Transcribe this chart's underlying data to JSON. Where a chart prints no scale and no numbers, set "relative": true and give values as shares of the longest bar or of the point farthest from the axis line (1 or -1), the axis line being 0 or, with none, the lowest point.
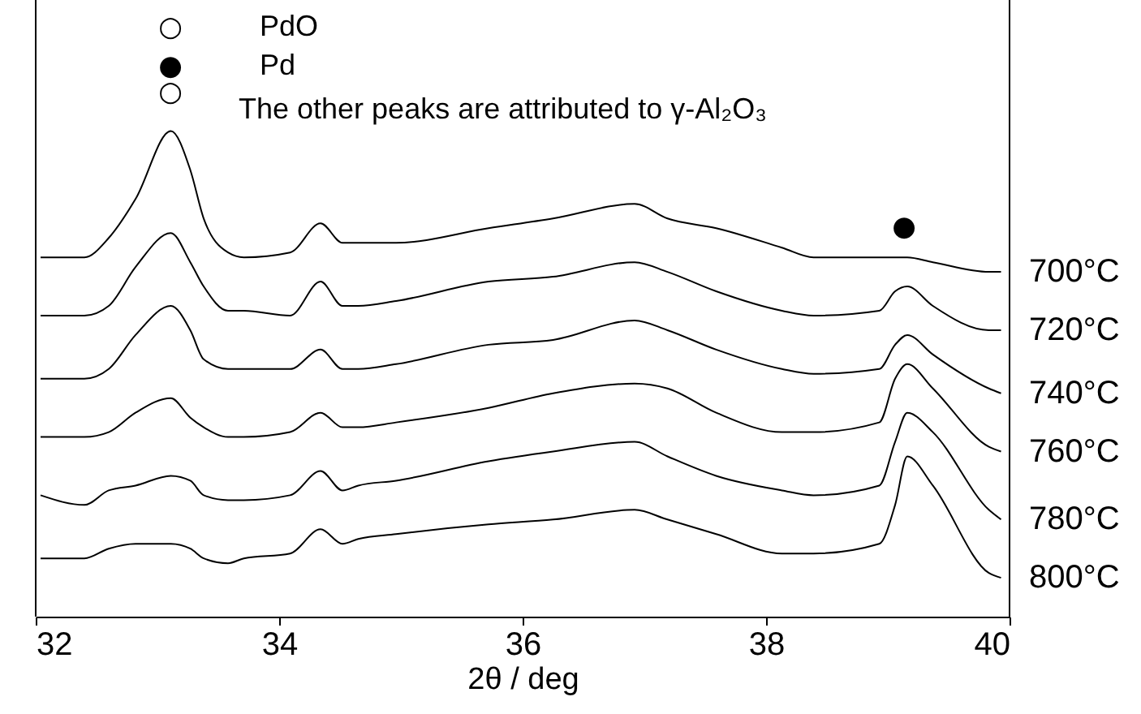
{
  "chart_data": {
    "type": "line",
    "relative": true,
    "xlabel": "2θ / deg",
    "xlim": [
      32,
      40
    ],
    "xticks": [
      32,
      34,
      36,
      38,
      40
    ],
    "grid": false,
    "legend": false,
    "line_style": "solid",
    "marker": "none",
    "x": [
      32.04,
      32.4,
      32.6,
      32.82,
      33.11,
      33.27,
      33.38,
      33.58,
      33.71,
      34.09,
      34.34,
      34.52,
      34.65,
      34.96,
      35.72,
      36.25,
      36.92,
      37.19,
      37.59,
      38.13,
      38.39,
      38.93,
      39.06,
      39.16,
      39.37,
      39.83,
      39.93
    ],
    "series": [
      {
        "name": "700°C",
        "color": "#000000",
        "values": [
          0.74,
          0.74,
          0.78,
          0.86,
          1.0,
          0.92,
          0.82,
          0.75,
          0.74,
          0.75,
          0.81,
          0.77,
          0.77,
          0.77,
          0.8,
          0.82,
          0.85,
          0.82,
          0.8,
          0.76,
          0.74,
          0.74,
          0.74,
          0.74,
          0.73,
          0.71,
          0.71
        ]
      },
      {
        "name": "720°C",
        "color": "#000000",
        "values": [
          0.62,
          0.62,
          0.64,
          0.72,
          0.79,
          0.73,
          0.68,
          0.63,
          0.63,
          0.62,
          0.69,
          0.64,
          0.64,
          0.65,
          0.69,
          0.7,
          0.73,
          0.71,
          0.67,
          0.63,
          0.62,
          0.63,
          0.67,
          0.68,
          0.64,
          0.59,
          0.59
        ]
      },
      {
        "name": "740°C",
        "color": "#000000",
        "values": [
          0.49,
          0.49,
          0.51,
          0.58,
          0.64,
          0.59,
          0.53,
          0.51,
          0.51,
          0.51,
          0.55,
          0.51,
          0.51,
          0.52,
          0.56,
          0.57,
          0.61,
          0.59,
          0.55,
          0.51,
          0.5,
          0.51,
          0.56,
          0.58,
          0.54,
          0.47,
          0.46
        ]
      },
      {
        "name": "760°C",
        "color": "#000000",
        "values": [
          0.37,
          0.37,
          0.38,
          0.42,
          0.45,
          0.41,
          0.39,
          0.37,
          0.37,
          0.38,
          0.42,
          0.39,
          0.39,
          0.4,
          0.43,
          0.46,
          0.48,
          0.47,
          0.42,
          0.38,
          0.38,
          0.4,
          0.49,
          0.52,
          0.47,
          0.35,
          0.34
        ]
      },
      {
        "name": "780°C",
        "color": "#000000",
        "values": [
          0.25,
          0.23,
          0.26,
          0.27,
          0.29,
          0.28,
          0.25,
          0.24,
          0.24,
          0.25,
          0.3,
          0.26,
          0.27,
          0.28,
          0.32,
          0.34,
          0.36,
          0.33,
          0.29,
          0.26,
          0.25,
          0.27,
          0.36,
          0.42,
          0.38,
          0.22,
          0.2
        ]
      },
      {
        "name": "800°C",
        "color": "#000000",
        "values": [
          0.12,
          0.12,
          0.14,
          0.15,
          0.15,
          0.14,
          0.12,
          0.11,
          0.12,
          0.13,
          0.18,
          0.15,
          0.16,
          0.17,
          0.19,
          0.2,
          0.22,
          0.2,
          0.17,
          0.13,
          0.13,
          0.15,
          0.23,
          0.33,
          0.27,
          0.09,
          0.08
        ]
      }
    ],
    "annotations": [
      "○",
      "●",
      "○",
      "PdO",
      "●",
      "Pd",
      "The other peaks are attributed to γ-Al₂O₃"
    ]
  }
}
